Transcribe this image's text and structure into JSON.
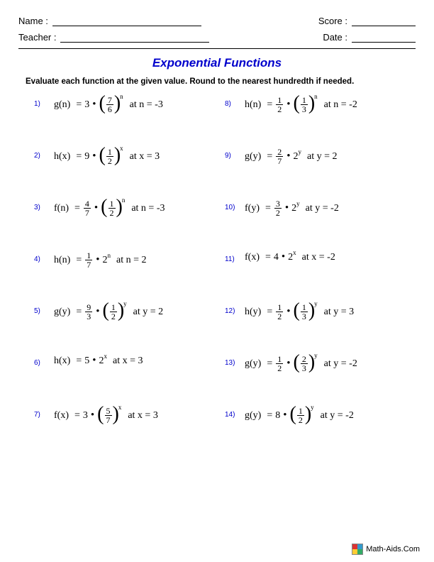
{
  "header": {
    "name_label": "Name :",
    "teacher_label": "Teacher :",
    "score_label": "Score :",
    "date_label": "Date :"
  },
  "title": "Exponential Functions",
  "instructions": "Evaluate each function at the given value. Round to the nearest hundredth if needed.",
  "footer": "Math-Aids.Com",
  "problems_left": [
    {
      "num": "1)",
      "fn": "g(n)",
      "coef": "3",
      "coef_is_frac": false,
      "base_is_frac": true,
      "base_num": "7",
      "base_den": "6",
      "base": "",
      "exp": "n",
      "at": "at  n = -3"
    },
    {
      "num": "2)",
      "fn": "h(x)",
      "coef": "9",
      "coef_is_frac": false,
      "base_is_frac": true,
      "base_num": "1",
      "base_den": "2",
      "base": "",
      "exp": "x",
      "at": "at x = 3"
    },
    {
      "num": "3)",
      "fn": "f(n)",
      "coef_is_frac": true,
      "coef_num": "4",
      "coef_den": "7",
      "coef": "",
      "base_is_frac": true,
      "base_num": "1",
      "base_den": "2",
      "base": "",
      "exp": "n",
      "at": "at  n = -3"
    },
    {
      "num": "4)",
      "fn": "h(n)",
      "coef_is_frac": true,
      "coef_num": "1",
      "coef_den": "7",
      "coef": "",
      "base_is_frac": false,
      "base": "2",
      "base_num": "",
      "base_den": "",
      "exp": "n",
      "at": "at n = 2"
    },
    {
      "num": "5)",
      "fn": "g(y)",
      "coef_is_frac": true,
      "coef_num": "9",
      "coef_den": "3",
      "coef": "",
      "base_is_frac": true,
      "base_num": "1",
      "base_den": "2",
      "base": "",
      "exp": "y",
      "at": "at  y = 2"
    },
    {
      "num": "6)",
      "fn": "h(x)",
      "coef": "5",
      "coef_is_frac": false,
      "base_is_frac": false,
      "base": "2",
      "base_num": "",
      "base_den": "",
      "exp": "x",
      "at": "at x = 3"
    },
    {
      "num": "7)",
      "fn": "f(x)",
      "coef": "3",
      "coef_is_frac": false,
      "base_is_frac": true,
      "base_num": "5",
      "base_den": "7",
      "base": "",
      "exp": "x",
      "at": "at x = 3"
    }
  ],
  "problems_right": [
    {
      "num": "8)",
      "fn": "h(n)",
      "coef_is_frac": true,
      "coef_num": "1",
      "coef_den": "2",
      "coef": "",
      "base_is_frac": true,
      "base_num": "1",
      "base_den": "3",
      "base": "",
      "exp": "n",
      "at": "at  n = -2"
    },
    {
      "num": "9)",
      "fn": "g(y)",
      "coef_is_frac": true,
      "coef_num": "2",
      "coef_den": "7",
      "coef": "",
      "base_is_frac": false,
      "base": "2",
      "base_num": "",
      "base_den": "",
      "exp": "y",
      "at": "at  y = 2"
    },
    {
      "num": "10)",
      "fn": "f(y)",
      "coef_is_frac": true,
      "coef_num": "3",
      "coef_den": "2",
      "coef": "",
      "base_is_frac": false,
      "base": "2",
      "base_num": "",
      "base_den": "",
      "exp": "y",
      "at": "at  y = -2"
    },
    {
      "num": "11)",
      "fn": "f(x)",
      "coef": "4",
      "coef_is_frac": false,
      "base_is_frac": false,
      "base": "2",
      "base_num": "",
      "base_den": "",
      "exp": "x",
      "at": "at x = -2"
    },
    {
      "num": "12)",
      "fn": "h(y)",
      "coef_is_frac": true,
      "coef_num": "1",
      "coef_den": "2",
      "coef": "",
      "base_is_frac": true,
      "base_num": "1",
      "base_den": "3",
      "base": "",
      "exp": "y",
      "at": "at  y = 3"
    },
    {
      "num": "13)",
      "fn": "g(y)",
      "coef_is_frac": true,
      "coef_num": "1",
      "coef_den": "2",
      "coef": "",
      "base_is_frac": true,
      "base_num": "2",
      "base_den": "3",
      "base": "",
      "exp": "y",
      "at": "at y = -2"
    },
    {
      "num": "14)",
      "fn": "g(y)",
      "coef": "8",
      "coef_is_frac": false,
      "base_is_frac": true,
      "base_num": "1",
      "base_den": "2",
      "base": "",
      "exp": "y",
      "at": "at  y = -2"
    }
  ]
}
